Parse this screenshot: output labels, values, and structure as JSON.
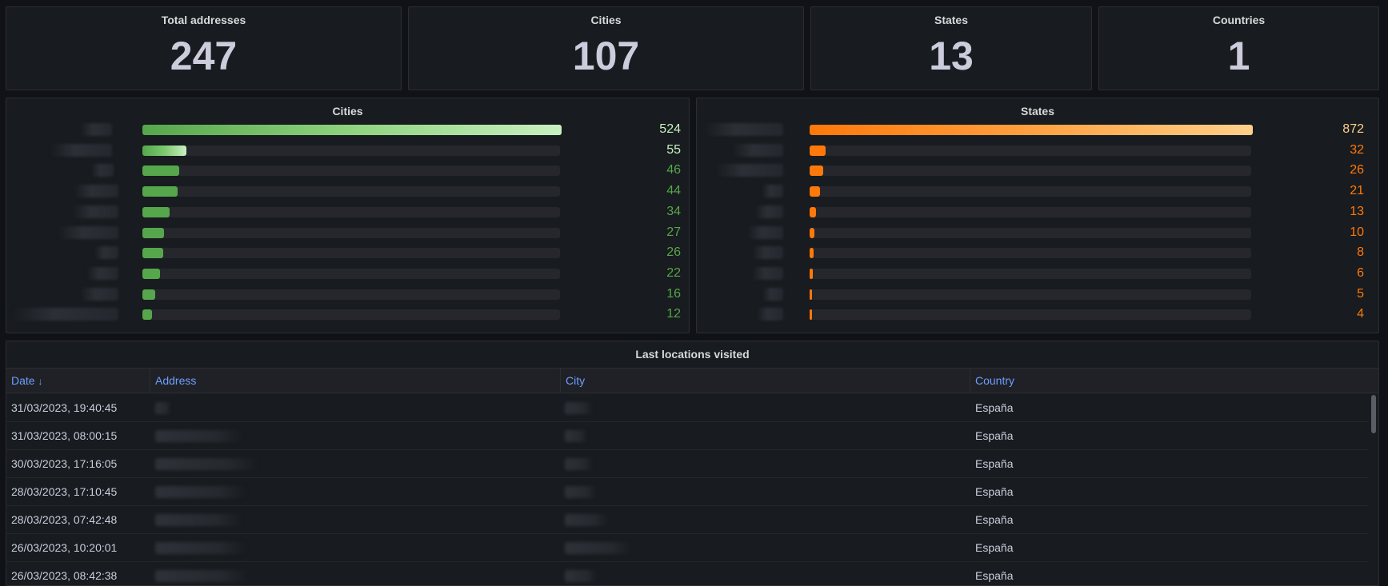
{
  "stats": {
    "total_addresses": {
      "title": "Total addresses",
      "value": "247"
    },
    "cities": {
      "title": "Cities",
      "value": "107"
    },
    "states": {
      "title": "States",
      "value": "13"
    },
    "countries": {
      "title": "Countries",
      "value": "1"
    }
  },
  "cities_chart": {
    "title": "Cities",
    "color": "#56a64b",
    "max": 524,
    "values": [
      524,
      55,
      46,
      44,
      34,
      27,
      26,
      22,
      16,
      12
    ],
    "labels": [
      "524",
      "55",
      "46",
      "44",
      "34",
      "27",
      "26",
      "22",
      "16",
      "12"
    ]
  },
  "states_chart": {
    "title": "States",
    "color": "#ff780a",
    "max": 872,
    "values": [
      872,
      32,
      26,
      21,
      13,
      10,
      8,
      6,
      5,
      4
    ],
    "labels": [
      "872",
      "32",
      "26",
      "21",
      "13",
      "10",
      "8",
      "6",
      "5",
      "4"
    ]
  },
  "table": {
    "title": "Last locations visited",
    "columns": {
      "date": "Date",
      "sort_icon": "↓",
      "address": "Address",
      "city": "City",
      "country": "Country"
    },
    "rows": [
      {
        "date": "31/03/2023, 19:40:45",
        "country": "España"
      },
      {
        "date": "31/03/2023, 08:00:15",
        "country": "España"
      },
      {
        "date": "30/03/2023, 17:16:05",
        "country": "España"
      },
      {
        "date": "28/03/2023, 17:10:45",
        "country": "España"
      },
      {
        "date": "28/03/2023, 07:42:48",
        "country": "España"
      },
      {
        "date": "26/03/2023, 10:20:01",
        "country": "España"
      },
      {
        "date": "26/03/2023, 08:42:38",
        "country": "España"
      }
    ]
  }
}
